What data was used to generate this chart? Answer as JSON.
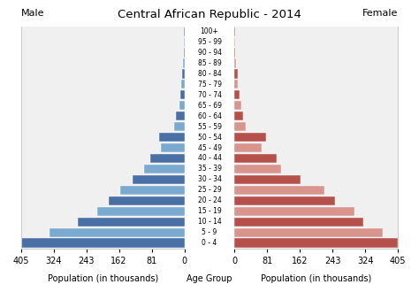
{
  "title": "Central African Republic - 2014",
  "age_groups": [
    "100+",
    "95 - 99",
    "90 - 94",
    "85 - 89",
    "80 - 84",
    "75 - 79",
    "70 - 74",
    "65 - 69",
    "60 - 64",
    "55 - 59",
    "50 - 54",
    "45 - 49",
    "40 - 44",
    "35 - 39",
    "30 - 34",
    "25 - 29",
    "20 - 24",
    "15 - 19",
    "10 - 14",
    "5 - 9",
    "0 - 4"
  ],
  "male": [
    0.5,
    1.0,
    1.5,
    2.5,
    5,
    7,
    11,
    13,
    20,
    25,
    62,
    58,
    85,
    100,
    128,
    158,
    188,
    215,
    265,
    335,
    405
  ],
  "female": [
    0.3,
    0.8,
    1.2,
    2.5,
    8,
    8,
    13,
    16,
    22,
    28,
    78,
    68,
    105,
    115,
    163,
    222,
    248,
    298,
    318,
    368,
    405
  ],
  "male_colors": [
    "#4a6fa5",
    "#7aaad0",
    "#4a6fa5",
    "#7aaad0",
    "#4a6fa5",
    "#7aaad0",
    "#4a6fa5",
    "#7aaad0",
    "#4a6fa5",
    "#7aaad0",
    "#4a6fa5",
    "#7aaad0",
    "#4a6fa5",
    "#7aaad0",
    "#4a6fa5",
    "#7aaad0",
    "#4a6fa5",
    "#7aaad0",
    "#4a6fa5",
    "#7aaad0",
    "#4a6fa5"
  ],
  "female_colors": [
    "#b5514a",
    "#d9948e",
    "#b5514a",
    "#d9948e",
    "#b5514a",
    "#d9948e",
    "#b5514a",
    "#d9948e",
    "#b5514a",
    "#d9948e",
    "#b5514a",
    "#d9948e",
    "#b5514a",
    "#d9948e",
    "#b5514a",
    "#d9948e",
    "#b5514a",
    "#d9948e",
    "#b5514a",
    "#d9948e",
    "#b5514a"
  ],
  "xlim": 405,
  "xticks_left": [
    405,
    324,
    243,
    162,
    81,
    0
  ],
  "xticks_right": [
    0,
    81,
    162,
    243,
    324,
    405
  ],
  "xlabel_left": "Population (in thousands)",
  "xlabel_center": "Age Group",
  "xlabel_right": "Population (in thousands)",
  "label_male": "Male",
  "label_female": "Female",
  "bg_color": "#ffffff",
  "plot_bg_color": "#f0f0f0",
  "border_color": "#cccccc"
}
